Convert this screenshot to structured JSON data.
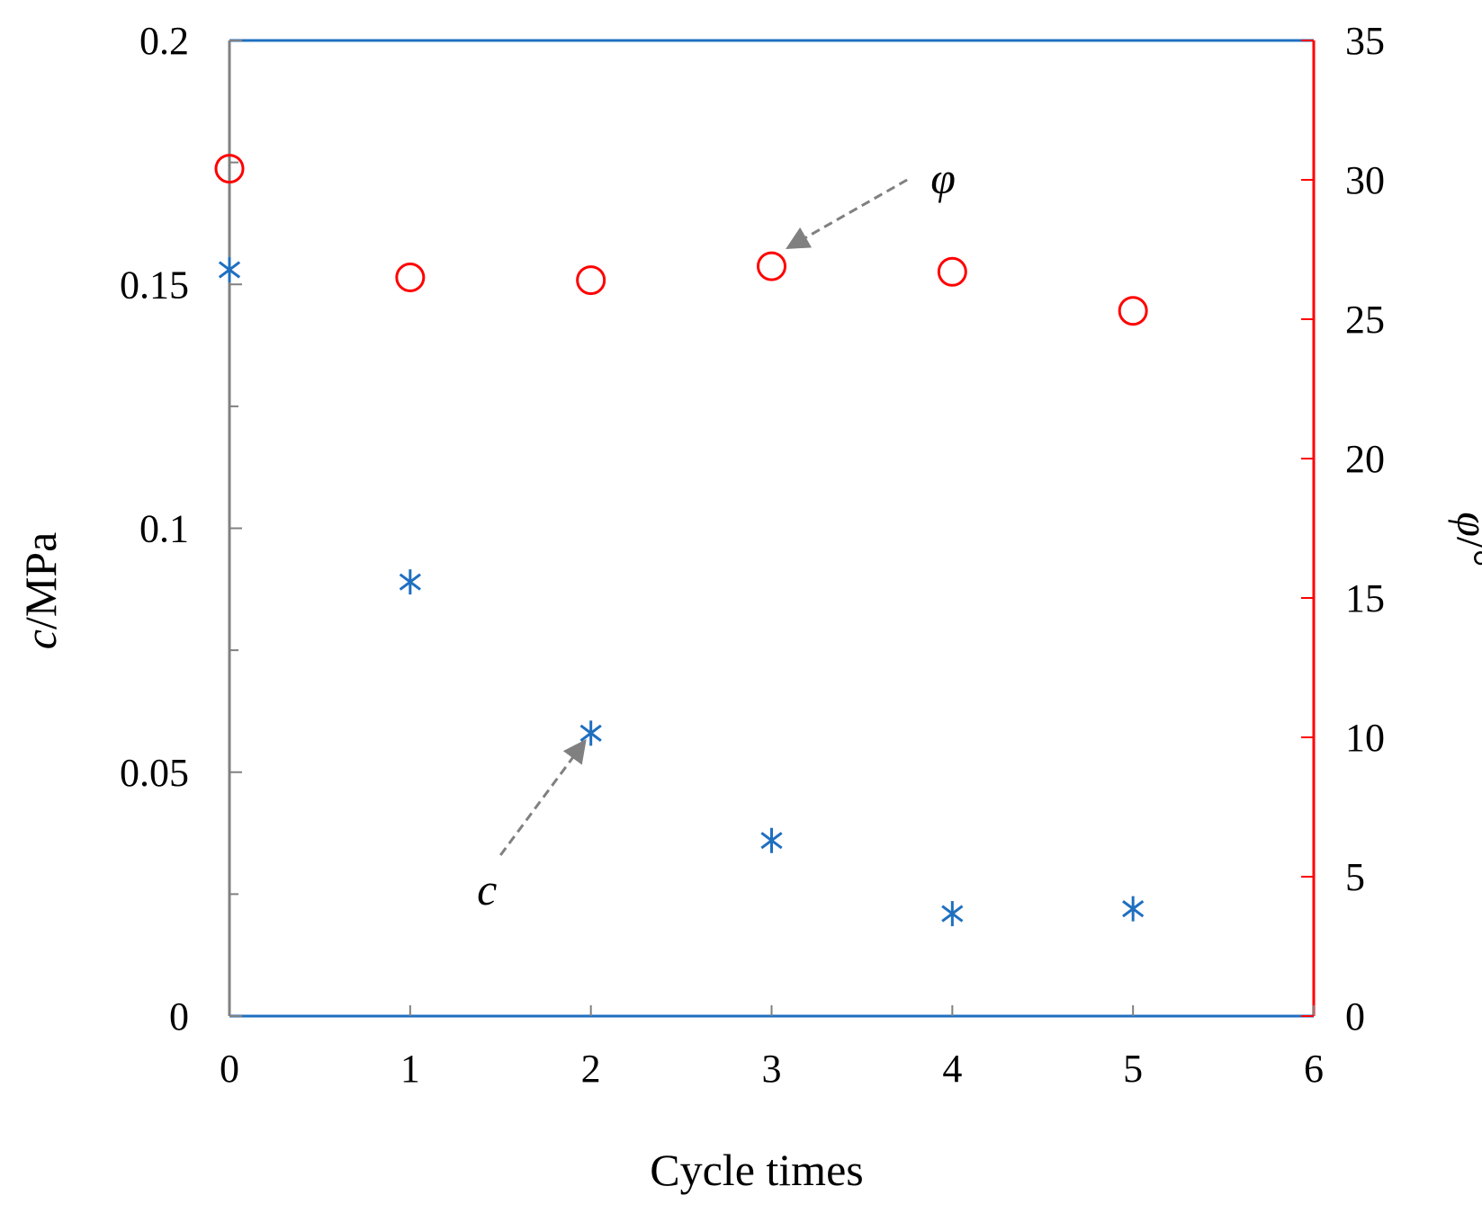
{
  "chart_data": {
    "type": "scatter",
    "x_label": "Cycle times",
    "y_left_label_var": "c",
    "y_left_label_unit": "/MPa",
    "y_right_label_var": "φ",
    "y_right_label_unit": "/°",
    "x_ticks": [
      "0",
      "1",
      "2",
      "3",
      "4",
      "5",
      "6"
    ],
    "y_left_ticks": [
      "0",
      "0.05",
      "0.1",
      "0.15",
      "0.2"
    ],
    "y_right_ticks": [
      "0",
      "5",
      "10",
      "15",
      "20",
      "25",
      "30",
      "35"
    ],
    "xlim": [
      0,
      6
    ],
    "ylim_left": [
      0,
      0.2
    ],
    "ylim_right": [
      0,
      35
    ],
    "series": [
      {
        "name": "c",
        "axis": "left",
        "marker": "asterisk",
        "color": "#1f6fc0",
        "x": [
          0,
          1,
          2,
          3,
          4,
          5
        ],
        "values": [
          0.153,
          0.089,
          0.058,
          0.036,
          0.021,
          0.022
        ]
      },
      {
        "name": "φ",
        "axis": "right",
        "marker": "circle-open",
        "color": "#ff0000",
        "x": [
          0,
          1,
          2,
          3,
          4,
          5
        ],
        "values": [
          30.4,
          26.5,
          26.4,
          26.9,
          26.7,
          25.3
        ]
      }
    ],
    "annotations": [
      {
        "text": "φ",
        "points_to_series": "φ",
        "arrow_from": [
          3.75,
          30.0
        ],
        "arrow_to": [
          3.1,
          27.6
        ]
      },
      {
        "text": "c",
        "points_to_series": "c",
        "arrow_from": [
          1.5,
          0.033
        ],
        "arrow_to": [
          1.96,
          0.056
        ]
      }
    ],
    "colors": {
      "left_axis": "#808080",
      "right_axis": "#ff0000",
      "frame_lines": "#1f6fc0",
      "arrow": "#808080"
    }
  }
}
